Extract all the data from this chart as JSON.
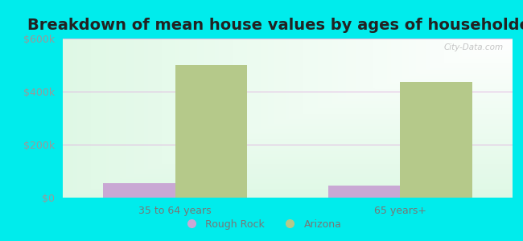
{
  "title": "Breakdown of mean house values by ages of householders",
  "categories": [
    "35 to 64 years",
    "65 years+"
  ],
  "rough_rock_values": [
    55000,
    45000
  ],
  "arizona_values": [
    500000,
    435000
  ],
  "rough_rock_color": "#c9a8d4",
  "arizona_color": "#b5c98a",
  "background_color": "#00ecec",
  "ylim": [
    0,
    600000
  ],
  "yticks": [
    0,
    200000,
    400000,
    600000
  ],
  "ytick_labels": [
    "$0",
    "$200k",
    "$400k",
    "$600k"
  ],
  "legend_labels": [
    "Rough Rock",
    "Arizona"
  ],
  "bar_width": 0.32,
  "title_fontsize": 14,
  "tick_fontsize": 9,
  "legend_fontsize": 9,
  "watermark": "City-Data.com",
  "grid_color": "#e0b0e0",
  "plot_bg_left": "#c8f0d0",
  "plot_bg_right": "#f0fff8"
}
